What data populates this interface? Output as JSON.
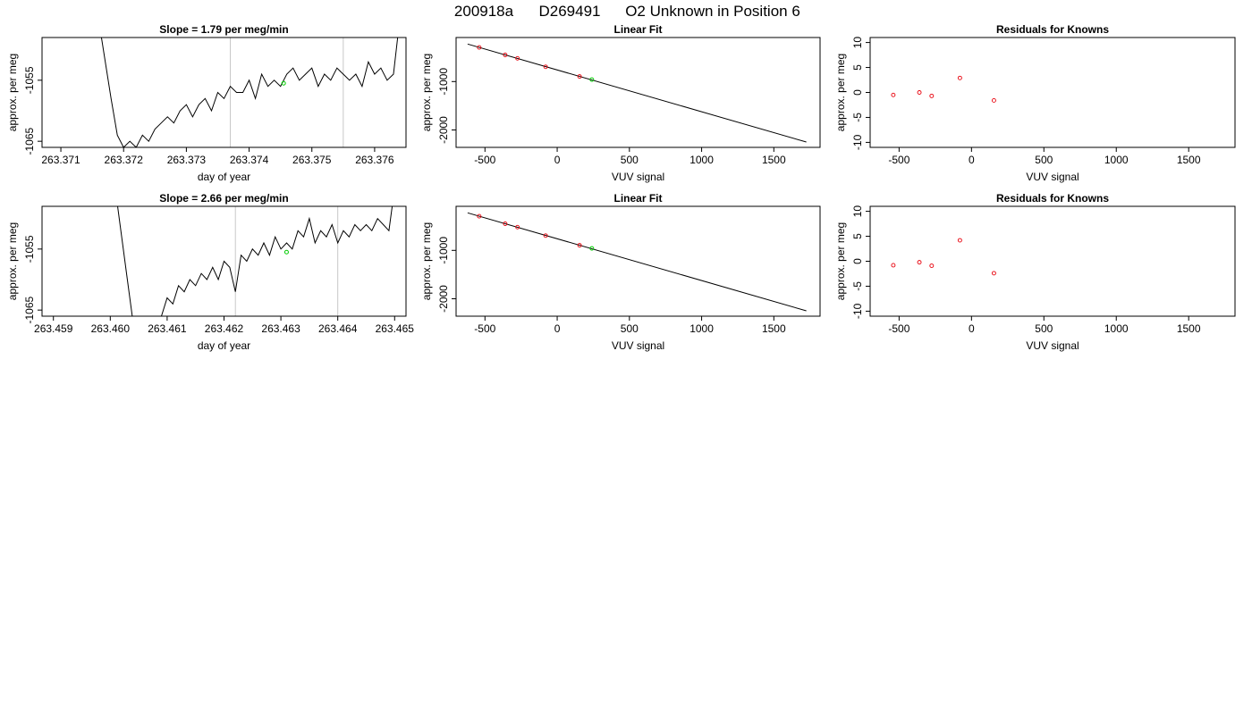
{
  "page": {
    "title_parts": [
      "200918a",
      "D269491",
      "O2 Unknown in Position  6"
    ]
  },
  "chart_data": [
    {
      "type": "line",
      "title": "Slope =  1.79  per meg/min",
      "xlabel": "day of year",
      "ylabel": "approx. per meg",
      "xlim": [
        263.3707,
        263.3765
      ],
      "ylim": [
        -1066,
        -1048
      ],
      "xticks": [
        263.371,
        263.372,
        263.373,
        263.374,
        263.375,
        263.376
      ],
      "xtick_labels": [
        "263.371",
        "263.372",
        "263.373",
        "263.374",
        "263.375",
        "263.376"
      ],
      "yticks": [
        -1065,
        -1055
      ],
      "ytick_labels": [
        "-1065",
        "-1055"
      ],
      "vlines": [
        263.3737,
        263.3755
      ],
      "series": [
        {
          "x": [
            263.3716,
            263.3718,
            263.3719,
            263.372,
            263.3721,
            263.3722,
            263.3723,
            263.3724,
            263.3725,
            263.3726,
            263.3727,
            263.3728,
            263.3729,
            263.373,
            263.3731,
            263.3732,
            263.3733,
            263.3734,
            263.3735,
            263.3736,
            263.3737,
            263.3738,
            263.3739,
            263.374,
            263.3741,
            263.3742,
            263.3743,
            263.3744,
            263.3745,
            263.3746,
            263.3747,
            263.3748,
            263.3749,
            263.375,
            263.3751,
            263.3752,
            263.3753,
            263.3754,
            263.3755,
            263.3756,
            263.3757,
            263.3758,
            263.3759,
            263.376,
            263.3761,
            263.3762,
            263.3763,
            263.3764
          ],
          "y": [
            -1045,
            -1058,
            -1064,
            -1066,
            -1065,
            -1066,
            -1064,
            -1065,
            -1063,
            -1062,
            -1061,
            -1062,
            -1060,
            -1059,
            -1061,
            -1059,
            -1058,
            -1060,
            -1057,
            -1058,
            -1056,
            -1057,
            -1057,
            -1055,
            -1058,
            -1054,
            -1056,
            -1055,
            -1056,
            -1054,
            -1053,
            -1055,
            -1054,
            -1053,
            -1056,
            -1054,
            -1055,
            -1053,
            -1054,
            -1055,
            -1054,
            -1056,
            -1052,
            -1054,
            -1053,
            -1055,
            -1054,
            -1045
          ]
        }
      ],
      "highlight": [
        {
          "x": 263.37455,
          "y": -1055.5
        }
      ]
    },
    {
      "type": "scatter",
      "title": "Linear Fit",
      "xlabel": "VUV signal",
      "ylabel": "approx. per meg",
      "xlim": [
        -700,
        1820
      ],
      "ylim": [
        -2360,
        -90
      ],
      "xticks": [
        -500,
        0,
        500,
        1000,
        1500
      ],
      "xtick_labels": [
        "-500",
        "0",
        "500",
        "1000",
        "1500"
      ],
      "yticks": [
        -1000,
        -2000
      ],
      "ytick_labels": [
        "-1000",
        "-2000"
      ],
      "fit_line": {
        "x": [
          -620,
          1725
        ],
        "y": [
          -225,
          -2250
        ]
      },
      "knowns": {
        "x": [
          -540,
          -360,
          -275,
          -80,
          155
        ],
        "y": [
          -295,
          -450,
          -520,
          -695,
          -895
        ]
      },
      "unknown": {
        "x": [
          240
        ],
        "y": [
          -960
        ]
      }
    },
    {
      "type": "scatter",
      "title": "Residuals for Knowns",
      "xlabel": "VUV signal",
      "ylabel": "approx. per meg",
      "xlim": [
        -700,
        1820
      ],
      "ylim": [
        -11,
        11
      ],
      "xticks": [
        -500,
        0,
        500,
        1000,
        1500
      ],
      "xtick_labels": [
        "-500",
        "0",
        "500",
        "1000",
        "1500"
      ],
      "yticks": [
        10,
        5,
        0,
        -5,
        -10
      ],
      "ytick_labels": [
        "10",
        "5",
        "0",
        "-5",
        "-10"
      ],
      "points": {
        "x": [
          -540,
          -360,
          -275,
          -80,
          155
        ],
        "y": [
          -0.5,
          0.0,
          -0.7,
          2.9,
          -1.6
        ]
      }
    },
    {
      "type": "line",
      "title": "Slope =  2.66  per meg/min",
      "xlabel": "day of year",
      "ylabel": "approx. per meg",
      "xlim": [
        263.4588,
        263.4652
      ],
      "ylim": [
        -1066,
        -1048
      ],
      "xticks": [
        263.459,
        263.46,
        263.461,
        263.462,
        263.463,
        263.464,
        263.465
      ],
      "xtick_labels": [
        "263.459",
        "263.460",
        "263.461",
        "263.462",
        "263.463",
        "263.464",
        "263.465"
      ],
      "yticks": [
        -1065,
        -1055
      ],
      "ytick_labels": [
        "-1065",
        "-1055"
      ],
      "vlines": [
        263.4622,
        263.464
      ],
      "series": [
        {
          "x": [
            263.4601,
            263.4603,
            263.4604,
            263.4609,
            263.461,
            263.4611,
            263.4612,
            263.4613,
            263.4614,
            263.4615,
            263.4616,
            263.4617,
            263.4618,
            263.4619,
            263.462,
            263.4621,
            263.4622,
            263.4623,
            263.4624,
            263.4625,
            263.4626,
            263.4627,
            263.4628,
            263.4629,
            263.463,
            263.4631,
            263.4632,
            263.4633,
            263.4634,
            263.4635,
            263.4636,
            263.4637,
            263.4638,
            263.4639,
            263.464,
            263.4641,
            263.4642,
            263.4643,
            263.4644,
            263.4645,
            263.4646,
            263.4647,
            263.4648,
            263.4649,
            263.465
          ],
          "y": [
            -1046,
            -1060,
            -1067,
            -1066,
            -1063,
            -1064,
            -1061,
            -1062,
            -1060,
            -1061,
            -1059,
            -1060,
            -1058,
            -1060,
            -1057,
            -1058,
            -1062,
            -1056,
            -1057,
            -1055,
            -1056,
            -1054,
            -1056,
            -1053,
            -1055,
            -1054,
            -1055,
            -1052,
            -1053,
            -1050,
            -1054,
            -1052,
            -1053,
            -1051,
            -1054,
            -1052,
            -1053,
            -1051,
            -1052,
            -1051,
            -1052,
            -1050,
            -1051,
            -1052,
            -1045
          ]
        }
      ],
      "highlight": [
        {
          "x": 263.4631,
          "y": -1055.5
        }
      ]
    },
    {
      "type": "scatter",
      "title": "Linear Fit",
      "xlabel": "VUV signal",
      "ylabel": "approx. per meg",
      "xlim": [
        -700,
        1820
      ],
      "ylim": [
        -2360,
        -90
      ],
      "xticks": [
        -500,
        0,
        500,
        1000,
        1500
      ],
      "xtick_labels": [
        "-500",
        "0",
        "500",
        "1000",
        "1500"
      ],
      "yticks": [
        -1000,
        -2000
      ],
      "ytick_labels": [
        "-1000",
        "-2000"
      ],
      "fit_line": {
        "x": [
          -620,
          1725
        ],
        "y": [
          -225,
          -2250
        ]
      },
      "knowns": {
        "x": [
          -540,
          -360,
          -275,
          -80,
          155
        ],
        "y": [
          -295,
          -450,
          -520,
          -695,
          -895
        ]
      },
      "unknown": {
        "x": [
          240
        ],
        "y": [
          -960
        ]
      }
    },
    {
      "type": "scatter",
      "title": "Residuals for Knowns",
      "xlabel": "VUV signal",
      "ylabel": "approx. per meg",
      "xlim": [
        -700,
        1820
      ],
      "ylim": [
        -11,
        11
      ],
      "xticks": [
        -500,
        0,
        500,
        1000,
        1500
      ],
      "xtick_labels": [
        "-500",
        "0",
        "500",
        "1000",
        "1500"
      ],
      "yticks": [
        10,
        5,
        0,
        -5,
        -10
      ],
      "ytick_labels": [
        "10",
        "5",
        "0",
        "-5",
        "-10"
      ],
      "points": {
        "x": [
          -540,
          -360,
          -275,
          -80,
          155
        ],
        "y": [
          -0.8,
          -0.2,
          -0.9,
          4.2,
          -2.4
        ]
      }
    }
  ]
}
